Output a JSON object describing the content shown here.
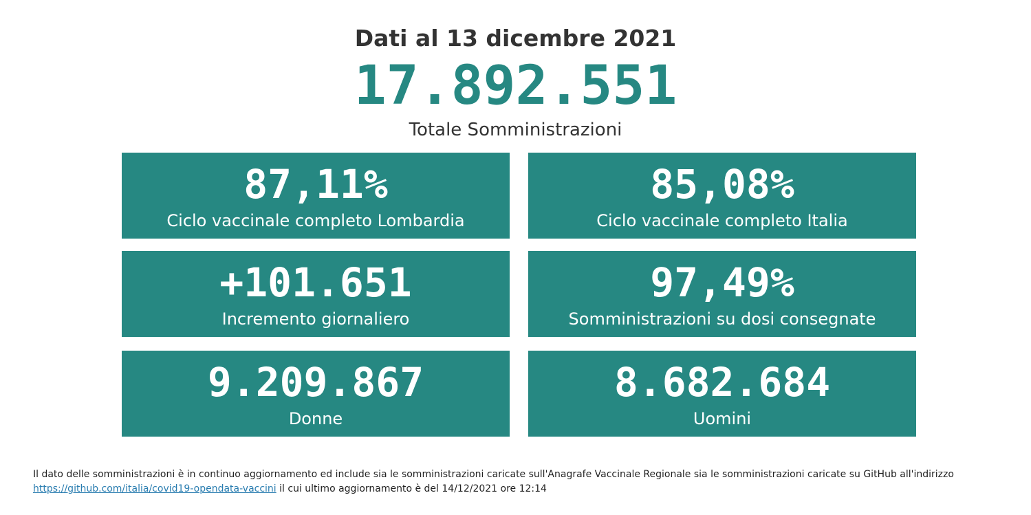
{
  "header": {
    "date_label": "Dati al 13 dicembre 2021",
    "total_value": "17.892.551",
    "total_caption": "Totale Somministrazioni"
  },
  "stats": [
    {
      "value": "87,11%",
      "label": "Ciclo vaccinale completo Lombardia"
    },
    {
      "value": "85,08%",
      "label": "Ciclo vaccinale completo Italia"
    },
    {
      "value": "+101.651",
      "label": "Incremento giornaliero"
    },
    {
      "value": "97,49%",
      "label": "Somministrazioni su dosi consegnate"
    },
    {
      "value": "9.209.867",
      "label": "Donne"
    },
    {
      "value": "8.682.684",
      "label": "Uomini"
    }
  ],
  "footer": {
    "text_before": "Il dato delle somministrazioni è in continuo aggiornamento ed include sia le somministrazioni caricate sull'Anagrafe Vaccinale Regionale sia le somministrazioni caricate su GitHub all'indirizzo ",
    "link_text": "https://github.com/italia/covid19-opendata-vaccini",
    "text_after": " il cui ultimo aggiornamento è del 14/12/2021 ore 12:14"
  },
  "colors": {
    "accent": "#268882",
    "text": "#333333",
    "link": "#2a7db0"
  }
}
